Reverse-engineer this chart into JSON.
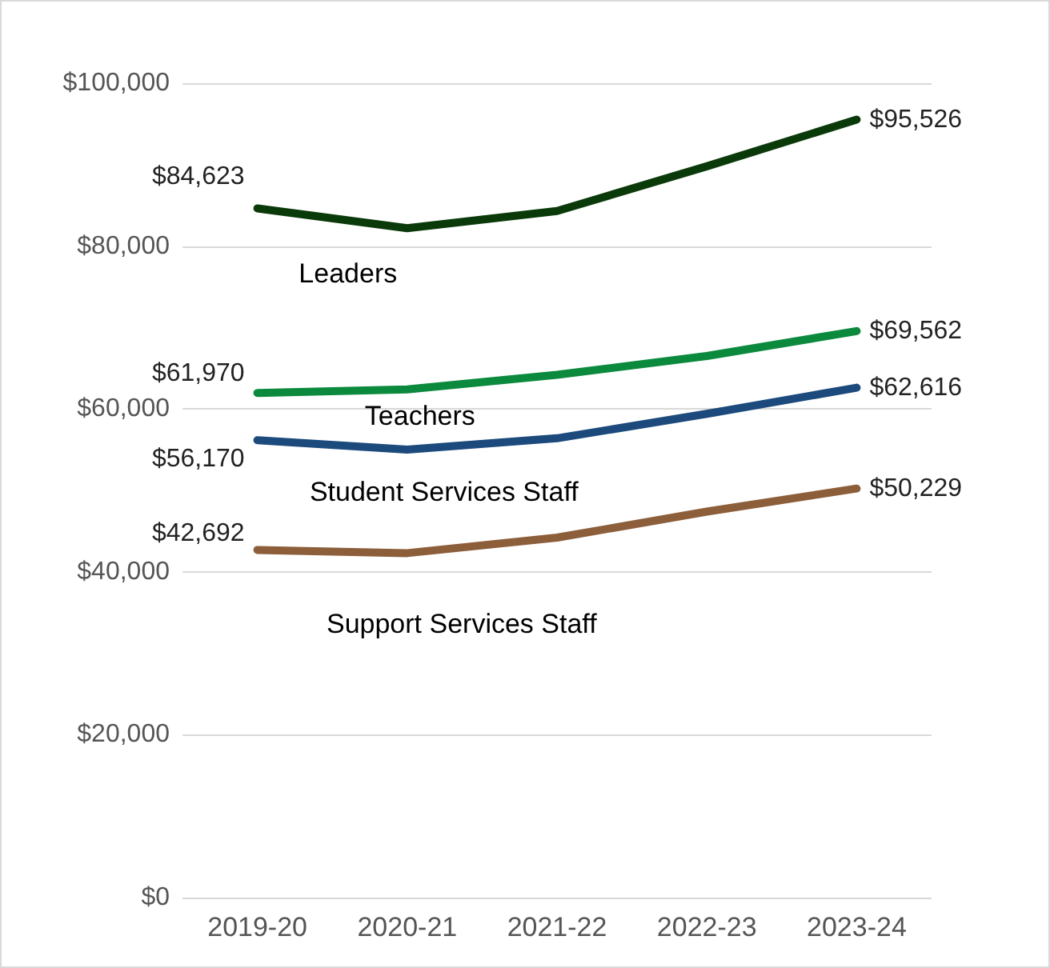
{
  "chart_data": {
    "type": "line",
    "categories": [
      "2019-20",
      "2020-21",
      "2021-22",
      "2022-23",
      "2023-24"
    ],
    "series": [
      {
        "name": "Leaders",
        "color": "#0a3a0a",
        "values": [
          84623,
          82200,
          84300,
          89800,
          95526
        ],
        "value_labels": [
          "$84,623",
          null,
          null,
          null,
          "$95,526"
        ]
      },
      {
        "name": "Teachers",
        "color": "#0b8a3e",
        "values": [
          61970,
          62400,
          64200,
          66500,
          69562
        ],
        "value_labels": [
          "$61,970",
          null,
          null,
          null,
          "$69,562"
        ]
      },
      {
        "name": "Student Services Staff",
        "color": "#1c4a7c",
        "values": [
          56170,
          55000,
          56400,
          59400,
          62616
        ],
        "value_labels": [
          "$56,170",
          null,
          null,
          null,
          "$62,616"
        ]
      },
      {
        "name": "Support Services Staff",
        "color": "#8c5e3a",
        "values": [
          42692,
          42300,
          44200,
          47400,
          50229
        ],
        "value_labels": [
          "$42,692",
          null,
          null,
          null,
          "$50,229"
        ]
      }
    ],
    "ylim": [
      0,
      100000
    ],
    "yticks": [
      {
        "value": 0,
        "label": "$0"
      },
      {
        "value": 20000,
        "label": "$20,000"
      },
      {
        "value": 40000,
        "label": "$40,000"
      },
      {
        "value": 60000,
        "label": "$60,000"
      },
      {
        "value": 80000,
        "label": "$80,000"
      },
      {
        "value": 100000,
        "label": "$100,000"
      }
    ],
    "grid": "y",
    "legend": false,
    "marker": "none",
    "line_style": "solid"
  }
}
